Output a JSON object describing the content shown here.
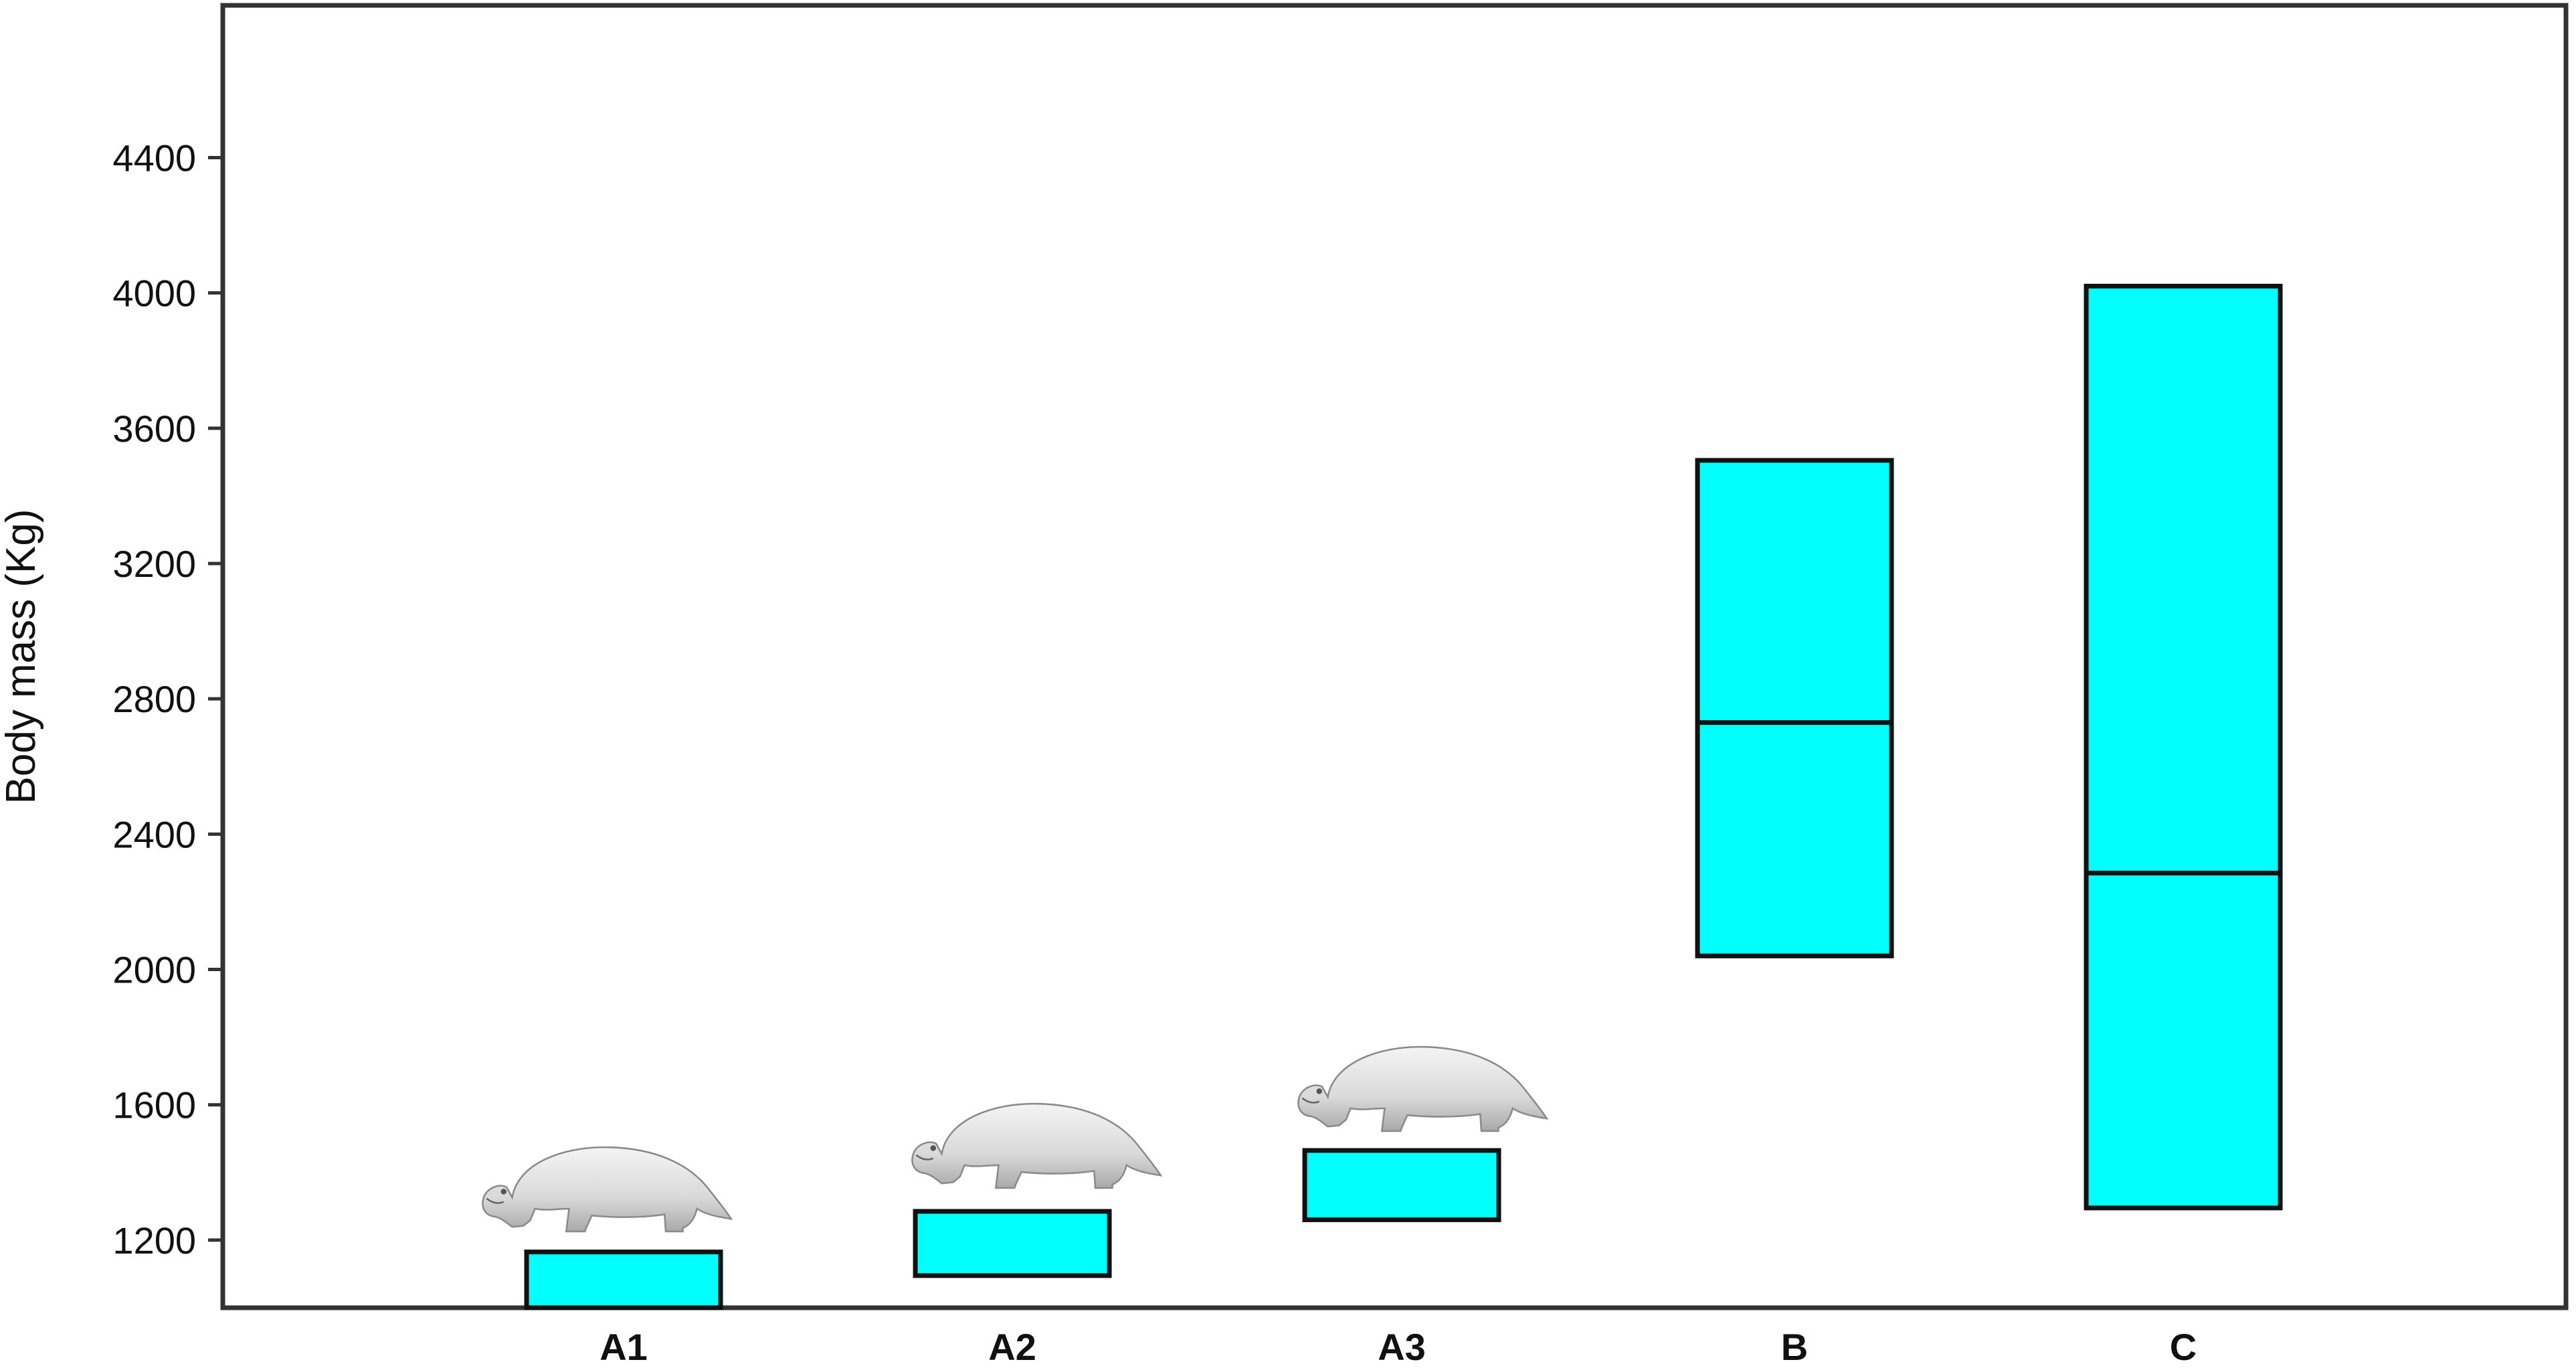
{
  "chart_data": {
    "type": "box",
    "title": "",
    "xlabel": "",
    "ylabel": "Body mass (Kg)",
    "ylim": [
      1000,
      4850
    ],
    "yticks": [
      1200,
      1600,
      2000,
      2400,
      2800,
      3200,
      3600,
      4000,
      4400
    ],
    "grid": false,
    "categories": [
      "A1",
      "A2",
      "A3",
      "B",
      "C"
    ],
    "boxes": [
      {
        "category": "A1",
        "low": 1000,
        "high": 1165,
        "median": null
      },
      {
        "category": "A2",
        "low": 1095,
        "high": 1285,
        "median": null
      },
      {
        "category": "A3",
        "low": 1260,
        "high": 1465,
        "median": null
      },
      {
        "category": "B",
        "low": 2040,
        "high": 3505,
        "median": 2730
      },
      {
        "category": "C",
        "low": 1295,
        "high": 4020,
        "median": 2285
      }
    ],
    "colors": {
      "box_fill": "#00FFFF",
      "box_stroke": "#111111",
      "axis": "#333333"
    },
    "illustrations": [
      {
        "category": "A1",
        "icon": "hippo-figure-icon"
      },
      {
        "category": "A2",
        "icon": "hippo-figure-icon"
      },
      {
        "category": "A3",
        "icon": "hippo-figure-icon"
      }
    ]
  }
}
